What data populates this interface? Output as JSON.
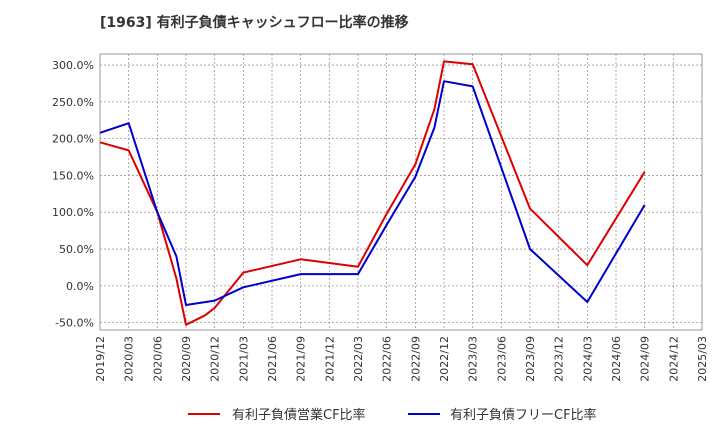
{
  "chart_data": {
    "type": "line",
    "title": "[1963]  有利子負債キャッシュフロー比率の推移",
    "xlabel": "",
    "ylabel": "",
    "ylim": [
      -60,
      315
    ],
    "y_ticks": [
      -50,
      0,
      50,
      100,
      150,
      200,
      250,
      300
    ],
    "y_tick_labels": [
      "-50.0%",
      "0.0%",
      "50.0%",
      "100.0%",
      "150.0%",
      "200.0%",
      "250.0%",
      "300.0%"
    ],
    "x_ticks": [
      "2019/12",
      "2020/03",
      "2020/06",
      "2020/09",
      "2020/12",
      "2021/03",
      "2021/06",
      "2021/09",
      "2021/12",
      "2022/03",
      "2022/06",
      "2022/09",
      "2022/12",
      "2023/03",
      "2023/06",
      "2023/09",
      "2023/12",
      "2024/03",
      "2024/06",
      "2024/09",
      "2024/12",
      "2025/03"
    ],
    "grid": true,
    "legend_position": "bottom",
    "series": [
      {
        "name": "有利子負債営業CF比率",
        "color": "#dd0000",
        "points": [
          [
            "2019/12",
            195
          ],
          [
            "2020/03",
            184
          ],
          [
            "2020/06",
            100
          ],
          [
            "2020/08",
            10
          ],
          [
            "2020/09",
            -53
          ],
          [
            "2020/11",
            -40
          ],
          [
            "2020/12",
            -30
          ],
          [
            "2021/03",
            18
          ],
          [
            "2021/09",
            36
          ],
          [
            "2022/03",
            26
          ],
          [
            "2022/06",
            98
          ],
          [
            "2022/09",
            165
          ],
          [
            "2022/11",
            240
          ],
          [
            "2022/12",
            305
          ],
          [
            "2023/03",
            301
          ],
          [
            "2023/09",
            105
          ],
          [
            "2024/03",
            28
          ],
          [
            "2024/09",
            155
          ]
        ]
      },
      {
        "name": "有利子負債フリーCF比率",
        "color": "#0000cc",
        "points": [
          [
            "2019/12",
            208
          ],
          [
            "2020/03",
            221
          ],
          [
            "2020/06",
            100
          ],
          [
            "2020/08",
            40
          ],
          [
            "2020/09",
            -26
          ],
          [
            "2020/12",
            -20
          ],
          [
            "2021/03",
            -2
          ],
          [
            "2021/09",
            16
          ],
          [
            "2022/03",
            16
          ],
          [
            "2022/06",
            83
          ],
          [
            "2022/09",
            148
          ],
          [
            "2022/11",
            215
          ],
          [
            "2022/12",
            278
          ],
          [
            "2023/03",
            271
          ],
          [
            "2023/09",
            50
          ],
          [
            "2024/03",
            -22
          ],
          [
            "2024/09",
            110
          ]
        ]
      }
    ]
  }
}
